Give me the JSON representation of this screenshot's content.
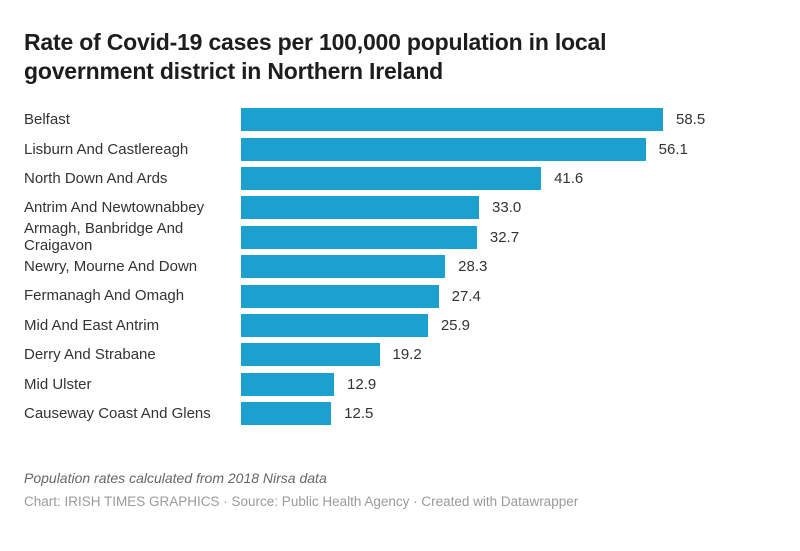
{
  "header": {
    "title": "Rate of Covid-19 cases per 100,000 population in local government district in Northern Ireland"
  },
  "chart_data": {
    "type": "bar",
    "orientation": "horizontal",
    "title": "Rate of Covid-19 cases per 100,000 population in local government district in Northern Ireland",
    "xlabel": "",
    "ylabel": "",
    "xlim": [
      0,
      58.5
    ],
    "grid": false,
    "legend": false,
    "bar_color": "#1CA1CF",
    "categories": [
      "Belfast",
      "Lisburn And Castlereagh",
      "North Down And Ards",
      "Antrim And Newtownabbey",
      "Armagh, Banbridge And Craigavon",
      "Newry, Mourne And Down",
      "Fermanagh And Omagh",
      "Mid And East Antrim",
      "Derry And Strabane",
      "Mid Ulster",
      "Causeway Coast And Glens"
    ],
    "values": [
      58.5,
      56.1,
      41.6,
      33.0,
      32.7,
      28.3,
      27.4,
      25.9,
      19.2,
      12.9,
      12.5
    ],
    "value_labels": [
      "58.5",
      "56.1",
      "41.6",
      "33.0",
      "32.7",
      "28.3",
      "27.4",
      "25.9",
      "19.2",
      "12.9",
      "12.5"
    ]
  },
  "footer": {
    "note": "Population rates calculated from 2018 Nirsa data",
    "credit": "Chart: IRISH TIMES GRAPHICS · Source: Public Health Agency · Created with Datawrapper"
  }
}
